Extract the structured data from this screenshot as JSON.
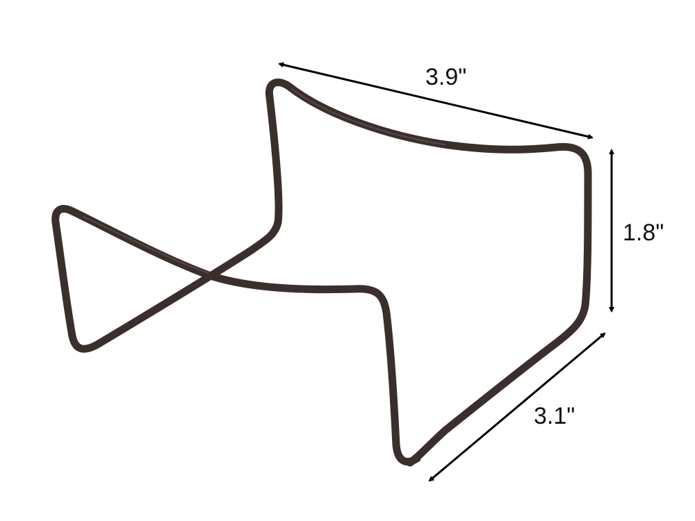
{
  "dimensions": {
    "width_label": "3.9\"",
    "height_label": "1.8\"",
    "depth_label": "3.1\""
  },
  "colors": {
    "wire": "#3a2f2d",
    "wire_highlight": "#6a5a56",
    "arrow": "#000000",
    "background": "#ffffff"
  }
}
